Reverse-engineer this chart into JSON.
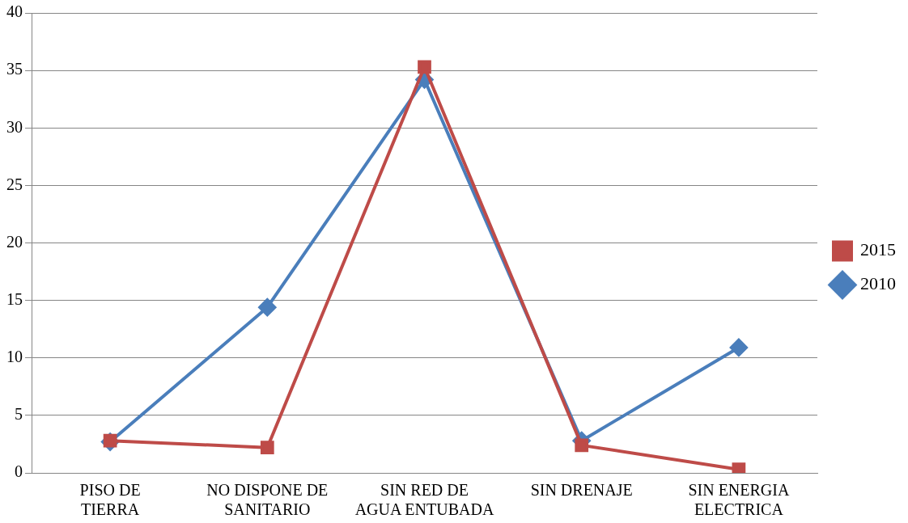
{
  "chart_data": {
    "type": "line",
    "categories": [
      "PISO DE TIERRA",
      "NO DISPONE DE SANITARIO",
      "SIN RED DE AGUA ENTUBADA",
      "SIN DRENAJE",
      "SIN ENERGIA ELECTRICA"
    ],
    "series": [
      {
        "name": "2010",
        "color": "#4a7ebb",
        "marker": "diamond",
        "values": [
          2.7,
          14.4,
          34.2,
          2.8,
          10.9
        ]
      },
      {
        "name": "2015",
        "color": "#be4b48",
        "marker": "square",
        "values": [
          2.8,
          2.2,
          35.3,
          2.4,
          0.3
        ]
      }
    ],
    "ylim": [
      0,
      40
    ],
    "yticks": [
      0,
      5,
      10,
      15,
      20,
      25,
      30,
      35,
      40
    ],
    "grid": "y",
    "legend": "right",
    "line_style": "solid"
  }
}
